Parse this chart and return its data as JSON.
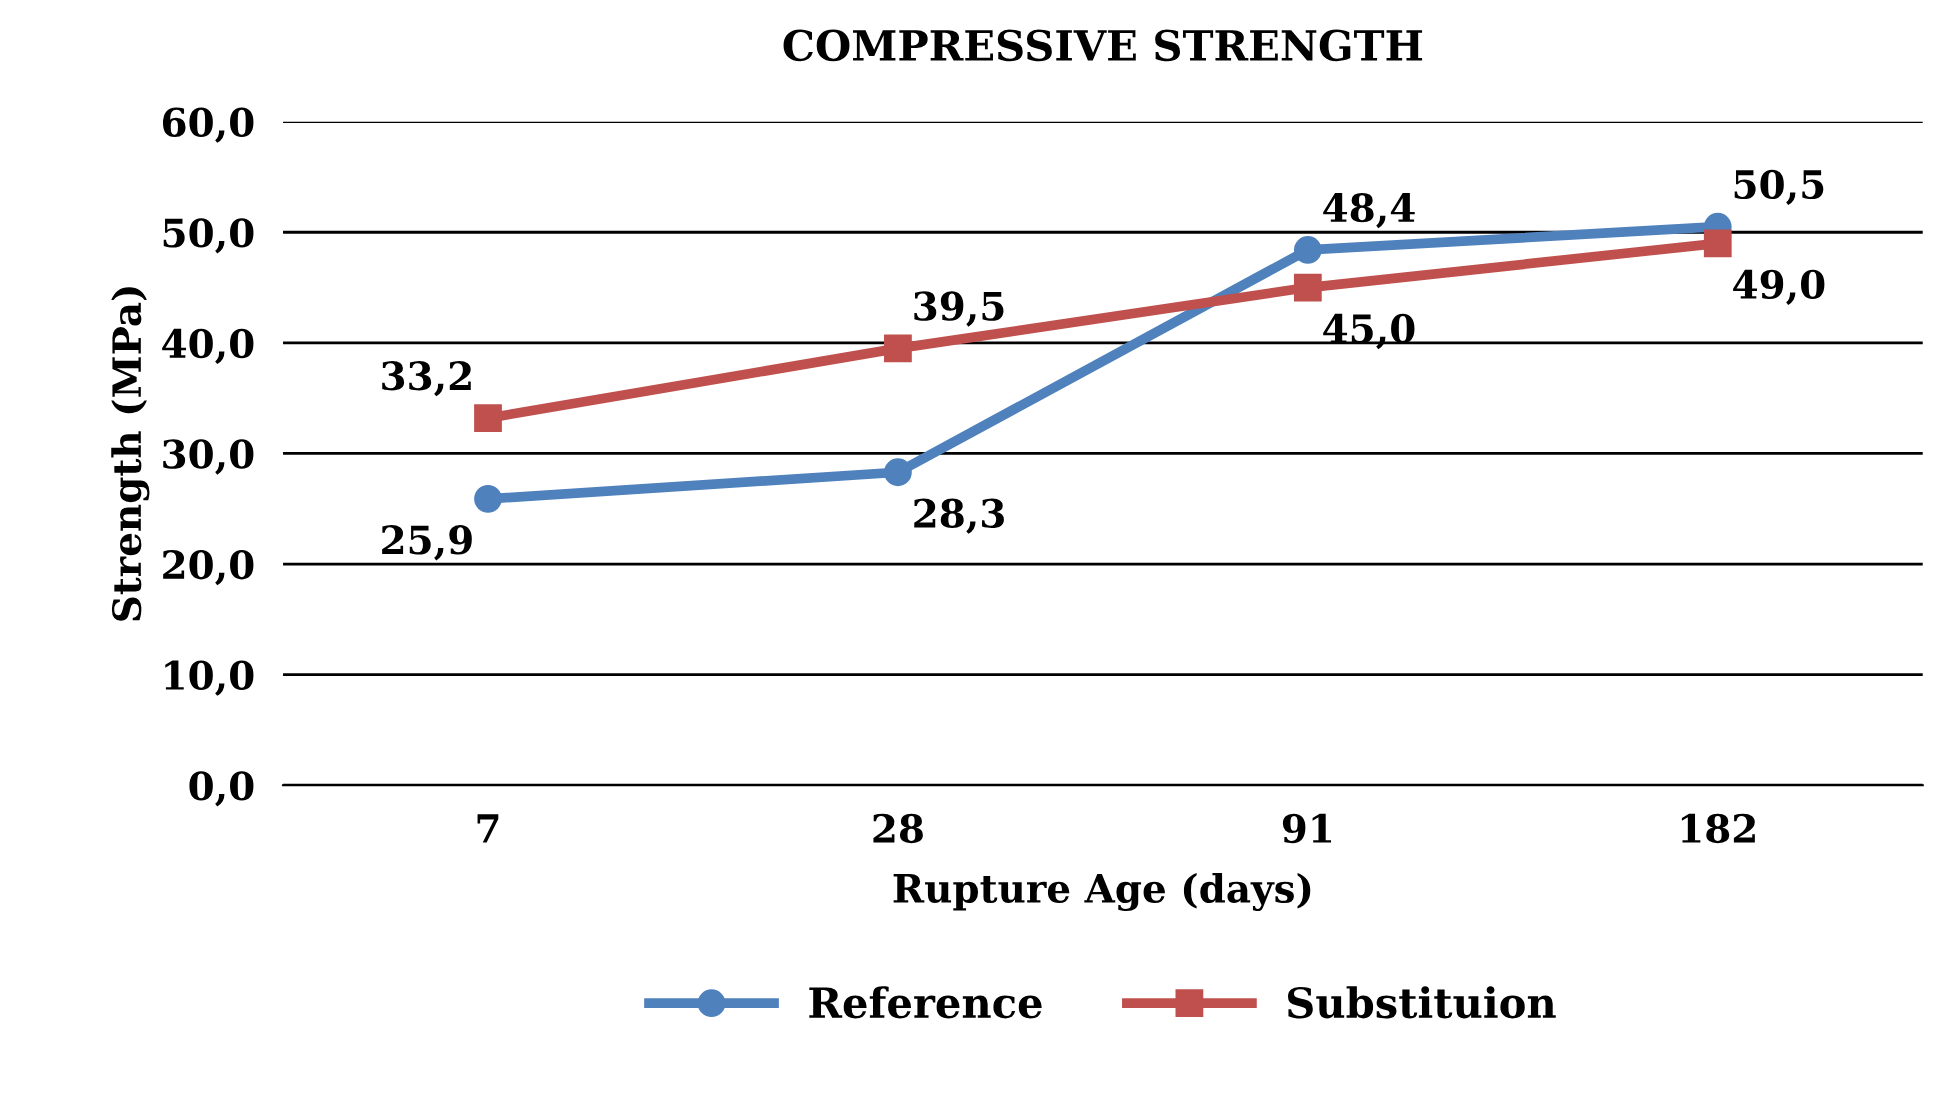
{
  "chart_data": {
    "type": "line",
    "title": "COMPRESSIVE STRENGTH",
    "xlabel": "Rupture Age (days)",
    "ylabel": "Strength (MPa)",
    "categories": [
      "7",
      "28",
      "91",
      "182"
    ],
    "series": [
      {
        "name": "Reference",
        "color": "#4f81bd",
        "marker": "circle",
        "values": [
          25.9,
          28.3,
          48.4,
          50.5
        ],
        "value_labels": [
          "25,9",
          "28,3",
          "48,4",
          "50,5"
        ]
      },
      {
        "name": "Substituion",
        "color": "#c0504d",
        "marker": "square",
        "values": [
          33.2,
          39.5,
          45.0,
          49.0
        ],
        "value_labels": [
          "33,2",
          "39,5",
          "45,0",
          "49,0"
        ]
      }
    ],
    "ylim": [
      0,
      60
    ],
    "yticks": [
      {
        "value": 0,
        "label": "0,0"
      },
      {
        "value": 10,
        "label": "10,0"
      },
      {
        "value": 20,
        "label": "20,0"
      },
      {
        "value": 30,
        "label": "30,0"
      },
      {
        "value": 40,
        "label": "40,0"
      },
      {
        "value": 50,
        "label": "50,0"
      },
      {
        "value": 60,
        "label": "60,0"
      }
    ],
    "grid": "y",
    "legend": "bottom",
    "line_style": "solid"
  }
}
